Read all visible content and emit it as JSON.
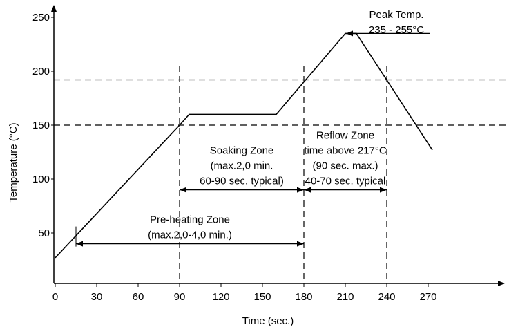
{
  "chart_data": {
    "type": "line",
    "xlabel": "Time (sec.)",
    "ylabel": "Temperature (°C)",
    "x_ticks": [
      "0",
      "30",
      "60",
      "90",
      "120",
      "150",
      "180",
      "210",
      "240",
      "270"
    ],
    "x_tick_values": [
      0,
      30,
      60,
      90,
      120,
      150,
      180,
      210,
      240,
      270
    ],
    "y_ticks": [
      "50",
      "100",
      "150",
      "200",
      "250"
    ],
    "y_tick_values": [
      50,
      100,
      150,
      200,
      250
    ],
    "xlim": [
      0,
      310
    ],
    "ylim": [
      20,
      260
    ],
    "grid": false,
    "series": [
      {
        "x": [
          0,
          90,
          97,
          160,
          210,
          218,
          273
        ],
        "y": [
          27,
          150,
          160,
          160,
          235,
          235,
          127
        ]
      }
    ],
    "reference_lines": {
      "horizontal_y": [
        150,
        192
      ],
      "vertical_x": [
        90,
        180,
        240
      ]
    },
    "zones": [
      {
        "lines": [
          "Pre-heating Zone",
          "(max.2,0-4,0 min.)"
        ],
        "x_start": 15,
        "x_end": 180,
        "y": 40
      },
      {
        "lines": [
          "Soaking Zone",
          "(max.2,0 min.",
          "60-90 sec. typical)"
        ],
        "x_start": 90,
        "x_end": 180,
        "y": 90
      },
      {
        "lines": [
          "Reflow Zone",
          "time above 217°C",
          "(90 sec. max.)",
          "40-70 sec. typical"
        ],
        "x_start": 180,
        "x_end": 240,
        "y": 90
      }
    ],
    "annotations": [
      {
        "lines": [
          "Peak Temp.",
          "235 - 255°C"
        ],
        "target_x": 211,
        "target_y": 235
      }
    ],
    "colors": {
      "line": "#000000",
      "background": "#ffffff"
    }
  }
}
